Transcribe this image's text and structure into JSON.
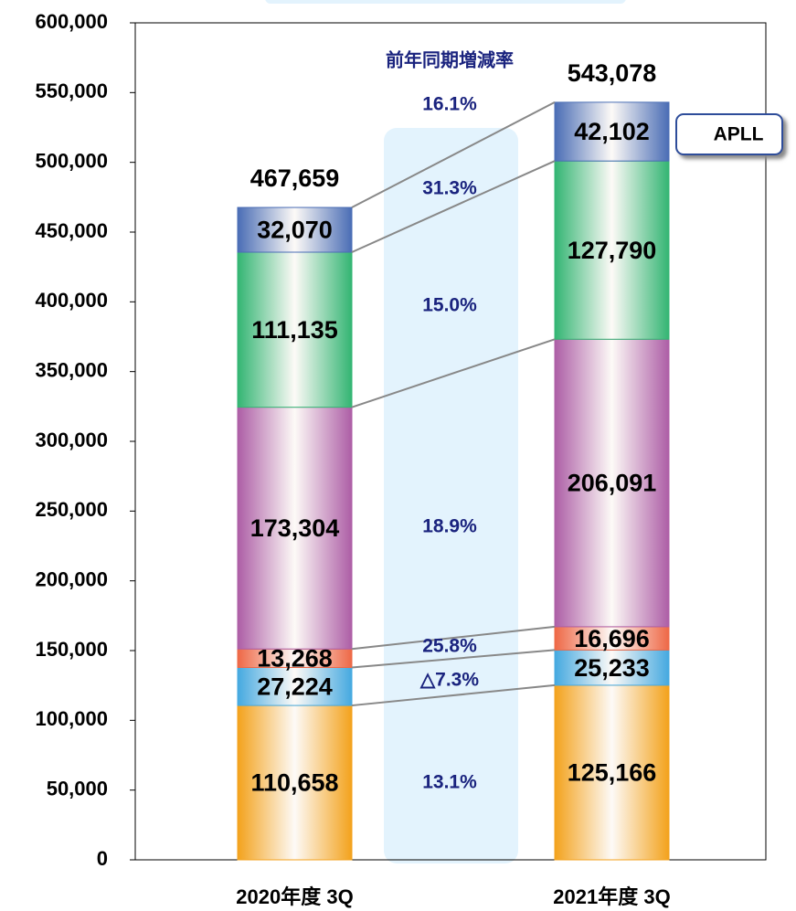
{
  "chart_data": {
    "type": "stacked_bar",
    "categories": [
      "2020年度 3Q",
      "2021年度 3Q"
    ],
    "series": [
      {
        "color": "#f3a21c",
        "values": [
          110658,
          125166
        ],
        "value_labels": [
          "110,658",
          "125,166"
        ]
      },
      {
        "color": "#45a9e0",
        "values": [
          27224,
          25233
        ],
        "value_labels": [
          "27,224",
          "25,233"
        ]
      },
      {
        "color": "#ee6846",
        "values": [
          13268,
          16696
        ],
        "value_labels": [
          "13,268",
          "16,696"
        ]
      },
      {
        "color": "#ad5ea6",
        "values": [
          173304,
          206091
        ],
        "value_labels": [
          "173,304",
          "206,091"
        ]
      },
      {
        "color": "#33b573",
        "values": [
          111135,
          127790
        ],
        "value_labels": [
          "111,135",
          "127,790"
        ]
      },
      {
        "name": "APLL",
        "color": "#4a6db5",
        "values": [
          32070,
          42102
        ],
        "value_labels": [
          "32,070",
          "42,102"
        ]
      }
    ],
    "totals": [
      467659,
      543078
    ],
    "total_labels": [
      "467,659",
      "543,078"
    ],
    "rates_title": "前年同期増減率",
    "rate_labels": [
      "13.1%",
      "△7.3%",
      "25.8%",
      "18.9%",
      "15.0%",
      "31.3%"
    ],
    "total_rate_label": "16.1%",
    "ylim": [
      0,
      600000
    ],
    "yticks": [
      0,
      {
        "value": 50000,
        "label": "50,000"
      },
      {
        "value": 100000,
        "label": "100,000"
      },
      {
        "value": 150000,
        "label": "150,000"
      },
      {
        "value": 200000,
        "label": "200,000"
      },
      {
        "value": 250000,
        "label": "250,000"
      },
      {
        "value": 300000,
        "label": "300,000"
      },
      {
        "value": 350000,
        "label": "350,000"
      },
      {
        "value": 400000,
        "label": "400,000"
      },
      {
        "value": 450000,
        "label": "450,000"
      },
      {
        "value": 500000,
        "label": "500,000"
      },
      {
        "value": 550000,
        "label": "550,000"
      },
      {
        "value": 600000,
        "label": "600,000"
      }
    ]
  }
}
